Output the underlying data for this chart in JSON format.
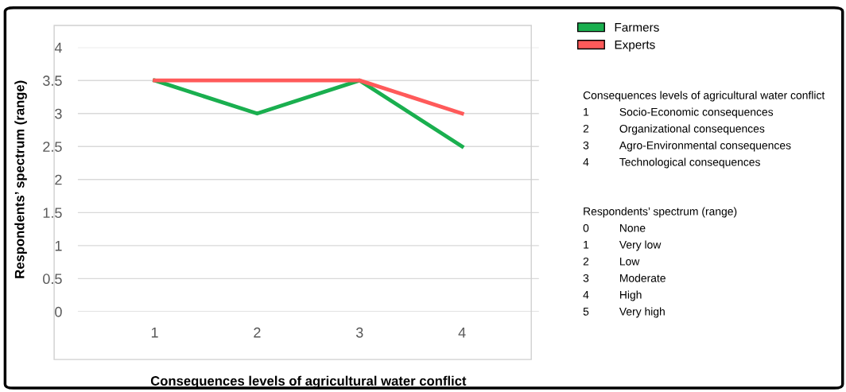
{
  "chart_data": {
    "type": "line",
    "xlabel": "Consequences levels of agricultural water conflict",
    "ylabel": "Respondents’ spectrum (range)",
    "categories": [
      "1",
      "2",
      "3",
      "4"
    ],
    "series": [
      {
        "name": "Farmers",
        "color": "#1aaf4f",
        "values": [
          3.5,
          3,
          3.5,
          2.5
        ]
      },
      {
        "name": "Experts",
        "color": "#ff5a5a",
        "values": [
          3.5,
          3.5,
          3.5,
          3
        ]
      }
    ],
    "ylim": [
      0,
      4
    ],
    "yticks": [
      0,
      0.5,
      1,
      1.5,
      2,
      2.5,
      3,
      3.5,
      4
    ],
    "grid": "y",
    "legend": "top right",
    "marker": "none",
    "line_style": "solid",
    "annotations": [
      "Consequences levels of agricultural water conflict",
      "1\tSocio-Economic consequences",
      "2\tOrganizational consequences",
      "3\tAgro-Environmental consequences",
      "4\tTechnological consequences",
      "Respondents’ spectrum (range)",
      "0\tNone",
      "1\tVery low",
      "2\tLow",
      "3\tModerate",
      "4\tHigh",
      "5\tVery high"
    ]
  }
}
